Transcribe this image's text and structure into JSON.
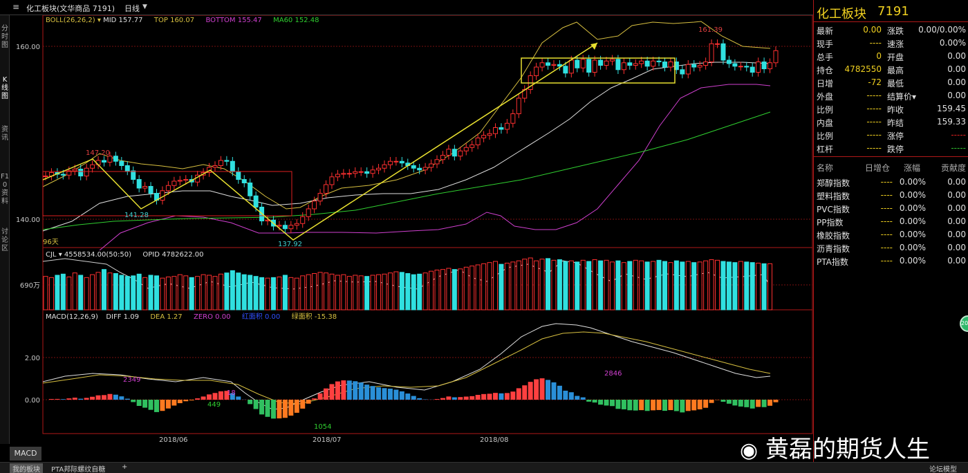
{
  "window": {
    "title": "化工板块(文华商品 7191)",
    "period": "日线",
    "left_tabs": [
      "分时图",
      "K线图",
      "资讯",
      "F10资料",
      "讨论区"
    ]
  },
  "indicators": {
    "boll": {
      "label": "BOLL(26,26,2)",
      "mid": "MID 157.77",
      "top": "TOP 160.07",
      "bottom": "BOTTOM 155.47",
      "ma60": "MA60 152.48"
    },
    "cjl": {
      "label": "CJL",
      "vol": "4558534.00(50:50)",
      "opid": "OPID 4782622.00"
    },
    "macd": {
      "label": "MACD(12,26,9)",
      "diff": "DIFF 1.09",
      "dea": "DEA 1.27",
      "zero": "ZERO 0.00",
      "red_area": "红面积 0.00",
      "green_area": "绿面积 -15.38"
    }
  },
  "price_axis": {
    "p160": "160.00",
    "p140": "140.00",
    "days": "96天"
  },
  "vol_axis": {
    "v690": "690万"
  },
  "macd_axis": {
    "m2": "2.00",
    "m0": "0.00"
  },
  "annotations": {
    "high1": "147.20",
    "low1": "141.28",
    "low2": "137.92",
    "high2": "161.39",
    "m_2349": "2349",
    "m_449": "449",
    "m_18": "18",
    "m_1054": "1054",
    "m_2846": "2846"
  },
  "dates": [
    "2018/06",
    "2018/07",
    "2018/08"
  ],
  "chart_data": {
    "type": "candlestick",
    "series": [
      {
        "name": "close",
        "values": [
          145.0,
          145.4,
          145.2,
          145.1,
          145.6,
          145.8,
          145.0,
          145.9,
          146.3,
          146.8,
          146.6,
          147.3,
          146.7,
          146.2,
          145.6,
          144.6,
          143.6,
          143.8,
          143.0,
          142.2,
          143.3,
          143.9,
          144.4,
          144.5,
          144.6,
          144.3,
          145.1,
          145.4,
          146.0,
          146.2,
          146.8,
          146.7,
          145.5,
          144.6,
          144.2,
          142.7,
          141.4,
          139.8,
          139.9,
          139.2,
          139.3,
          138.9,
          139.3,
          139.5,
          140.3,
          141.2,
          142.1,
          143.0,
          144.0,
          144.9,
          145.2,
          145.3,
          145.3,
          145.5,
          145.5,
          145.3,
          145.7,
          145.9,
          146.3,
          146.7,
          146.7,
          146.5,
          146.2,
          145.9,
          145.7,
          146.0,
          146.4,
          146.9,
          147.4,
          148.1,
          147.3,
          147.9,
          148.3,
          148.6,
          149.4,
          149.7,
          149.9,
          150.6,
          150.4,
          151.1,
          152.2,
          154.0,
          155.0,
          156.6,
          157.6,
          158.1,
          157.8,
          157.9,
          157.7,
          156.9,
          158.4,
          157.5,
          158.5,
          157.0,
          158.4,
          157.8,
          158.3,
          158.5,
          157.3,
          158.1,
          157.8,
          158.0,
          158.3,
          157.7,
          158.3,
          158.2,
          157.6,
          158.2,
          157.3,
          156.8,
          157.9,
          157.6,
          157.8,
          158.2,
          160.3,
          160.3,
          158.4,
          158.0,
          157.7,
          157.7,
          157.6,
          157.0,
          158.2,
          157.4,
          158.1,
          159.5
        ]
      },
      {
        "name": "volume",
        "values": [
          580,
          560,
          600,
          620,
          570,
          640,
          600,
          560,
          610,
          650,
          700,
          640,
          630,
          600,
          580,
          590,
          620,
          560,
          600,
          590,
          550,
          570,
          580,
          610,
          590,
          560,
          580,
          610,
          600,
          580,
          620,
          640,
          680,
          640,
          610,
          600,
          580,
          560,
          550,
          560,
          570,
          600,
          560,
          550,
          590,
          610,
          630,
          650,
          640,
          620,
          600,
          610,
          580,
          600,
          590,
          580,
          600,
          610,
          620,
          640,
          660,
          650,
          630,
          610,
          620,
          640,
          670,
          690,
          700,
          720,
          700,
          710,
          740,
          760,
          780,
          800,
          820,
          840,
          790,
          810,
          830,
          850,
          880,
          900,
          850,
          880,
          890,
          860,
          870,
          840,
          850,
          830,
          860,
          840,
          870,
          850,
          860,
          830,
          850,
          820,
          840,
          860,
          850,
          830,
          840,
          860,
          840,
          820,
          850,
          830,
          840,
          820,
          830,
          850,
          870,
          860,
          840,
          830,
          820,
          840,
          830,
          820,
          810,
          800,
          800
        ]
      }
    ],
    "xlabel": "",
    "ylabel": ""
  }
}
